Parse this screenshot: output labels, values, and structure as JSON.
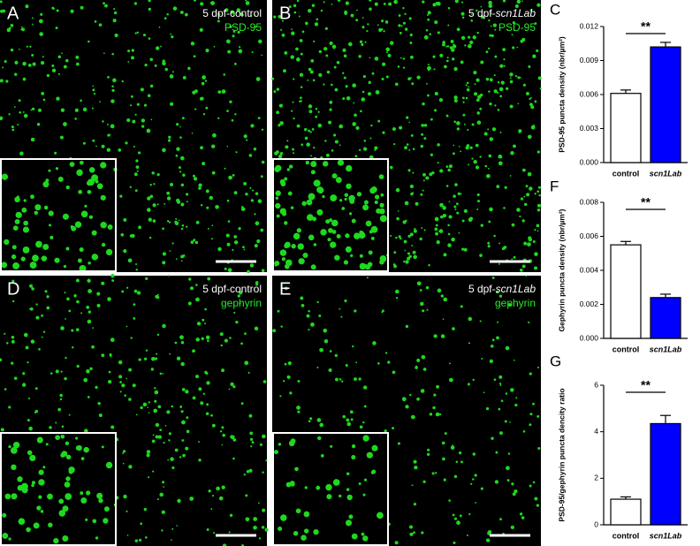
{
  "panels": [
    {
      "label": "A",
      "condition": "5 dpf-control",
      "stain": "PSD-95"
    },
    {
      "label": "B",
      "condition_prefix": "5 dpf-",
      "condition_italic": "scn1Lab",
      "stain": "PSD-95"
    },
    {
      "label": "D",
      "condition": "5 dpf-control",
      "stain": "gephyrin"
    },
    {
      "label": "E",
      "condition_prefix": "5 dpf-",
      "condition_italic": "scn1Lab",
      "stain": "gephyrin"
    }
  ],
  "chart_data": [
    {
      "type": "bar",
      "panel_label": "C",
      "y_label": "PSD-95 puncta density (nbr/µm²)",
      "categories": [
        "control",
        "scn1Lab"
      ],
      "values": [
        0.0061,
        0.0102
      ],
      "errors": [
        0.0003,
        0.0004
      ],
      "colors": [
        "#ffffff",
        "#0000ff"
      ],
      "annotation": "**",
      "ylim": [
        0,
        0.012
      ],
      "yticks": [
        {
          "value": 0,
          "label": "0.000"
        },
        {
          "value": 0.003,
          "label": "0.003"
        },
        {
          "value": 0.006,
          "label": "0.006"
        },
        {
          "value": 0.009,
          "label": "0.009"
        },
        {
          "value": 0.012,
          "label": "0.012"
        }
      ]
    },
    {
      "type": "bar",
      "panel_label": "F",
      "y_label": "Gephyrin puncta density (nbr/µm²)",
      "categories": [
        "control",
        "scn1Lab"
      ],
      "values": [
        0.0055,
        0.0024
      ],
      "errors": [
        0.0002,
        0.0002
      ],
      "colors": [
        "#ffffff",
        "#0000ff"
      ],
      "annotation": "**",
      "ylim": [
        0,
        0.008
      ],
      "yticks": [
        {
          "value": 0,
          "label": "0.000"
        },
        {
          "value": 0.002,
          "label": "0.002"
        },
        {
          "value": 0.004,
          "label": "0.004"
        },
        {
          "value": 0.006,
          "label": "0.006"
        },
        {
          "value": 0.008,
          "label": "0.008"
        }
      ]
    },
    {
      "type": "bar",
      "panel_label": "G",
      "y_label": "PSD-95/gephyrin puncta dencity ratio",
      "categories": [
        "control",
        "scn1Lab"
      ],
      "values": [
        1.1,
        4.35
      ],
      "errors": [
        0.1,
        0.35
      ],
      "colors": [
        "#ffffff",
        "#0000ff"
      ],
      "annotation": "**",
      "ylim": [
        0,
        6
      ],
      "yticks": [
        0,
        2,
        4,
        6
      ]
    }
  ]
}
